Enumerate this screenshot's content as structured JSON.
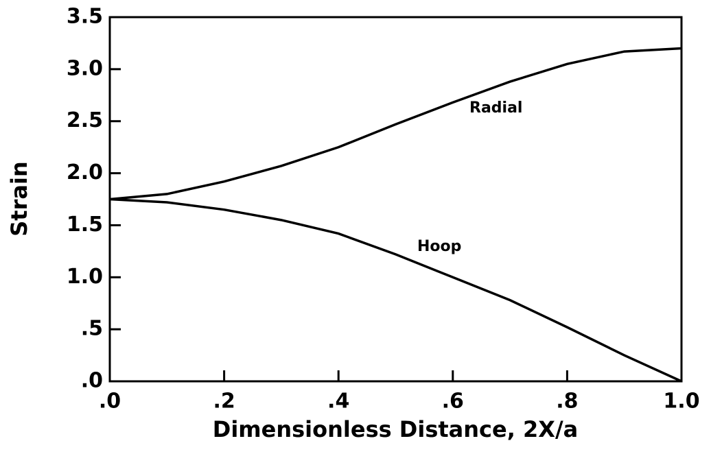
{
  "chart_data": {
    "type": "line",
    "xlabel": "Dimensionless Distance, 2X/a",
    "ylabel": "Strain",
    "x": [
      0,
      0.1,
      0.2,
      0.3,
      0.4,
      0.5,
      0.6,
      0.7,
      0.8,
      0.9,
      1.0
    ],
    "series": [
      {
        "name": "Radial",
        "color": "#000000",
        "values": [
          1.75,
          1.8,
          1.92,
          2.07,
          2.25,
          2.47,
          2.68,
          2.88,
          3.05,
          3.17,
          3.2
        ]
      },
      {
        "name": "Hoop",
        "color": "#000000",
        "values": [
          1.75,
          1.72,
          1.65,
          1.55,
          1.42,
          1.22,
          1.0,
          0.78,
          0.52,
          0.25,
          0
        ]
      }
    ],
    "xlim": [
      0,
      1
    ],
    "ylim": [
      0,
      3.5
    ],
    "xticks": [
      {
        "value": 0,
        "label": ".0"
      },
      {
        "value": 0.2,
        "label": ".2"
      },
      {
        "value": 0.4,
        "label": ".4"
      },
      {
        "value": 0.6,
        "label": ".6"
      },
      {
        "value": 0.8,
        "label": ".8"
      },
      {
        "value": 1,
        "label": "1.0"
      }
    ],
    "yticks": [
      {
        "value": 0,
        "label": ".0"
      },
      {
        "value": 0.5,
        "label": ".5"
      },
      {
        "value": 1,
        "label": "1.0"
      },
      {
        "value": 1.5,
        "label": "1.5"
      },
      {
        "value": 2,
        "label": "2.0"
      },
      {
        "value": 2.5,
        "label": "2.5"
      },
      {
        "value": 3,
        "label": "3.0"
      },
      {
        "value": 3.5,
        "label": "3.5"
      }
    ],
    "grid": false
  }
}
